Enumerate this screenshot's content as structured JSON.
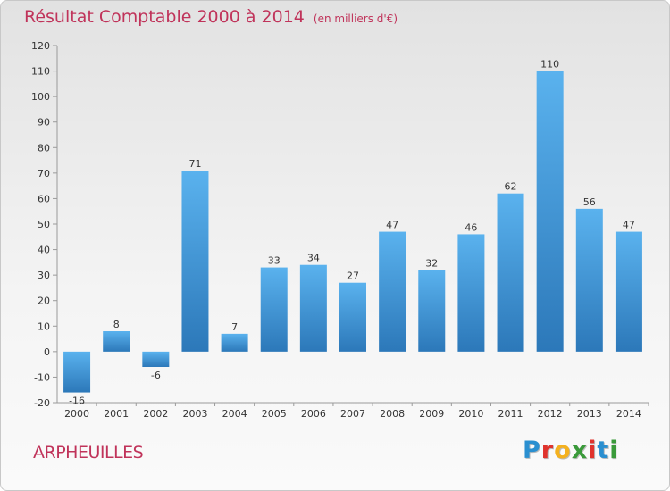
{
  "title": "Résultat Comptable 2000 à 2014",
  "subtitle": "(en milliers d'€)",
  "place": "ARPHEUILLES",
  "logo": {
    "letters": [
      "P",
      "r",
      "o",
      "x",
      "i",
      "t",
      "i"
    ],
    "colors": [
      "#2a8fd0",
      "#e0332d",
      "#f4b11f",
      "#3a9a3a",
      "#e0332d",
      "#2a8fd0",
      "#3a9a3a"
    ]
  },
  "chart_data": {
    "type": "bar",
    "categories": [
      "2000",
      "2001",
      "2002",
      "2003",
      "2004",
      "2005",
      "2006",
      "2007",
      "2008",
      "2009",
      "2010",
      "2011",
      "2012",
      "2013",
      "2014"
    ],
    "values": [
      -16,
      8,
      -6,
      71,
      7,
      33,
      34,
      27,
      47,
      32,
      46,
      62,
      110,
      56,
      47
    ],
    "data_labels": [
      "-16",
      "8",
      "-6",
      "71",
      "7",
      "33",
      "34",
      "27",
      "47",
      "32",
      "46",
      "62",
      "110",
      "56",
      "47"
    ],
    "yticks": [
      "-20",
      "-10",
      "0",
      "10",
      "20",
      "30",
      "40",
      "50",
      "60",
      "70",
      "80",
      "90",
      "100",
      "110",
      "120"
    ],
    "ylim": [
      -20,
      120
    ],
    "grid": false,
    "colors": {
      "bar_top": "#5ab2ee",
      "bar_bottom": "#2c78b9",
      "text": "#333333",
      "axis": "#9a9a9a"
    }
  }
}
